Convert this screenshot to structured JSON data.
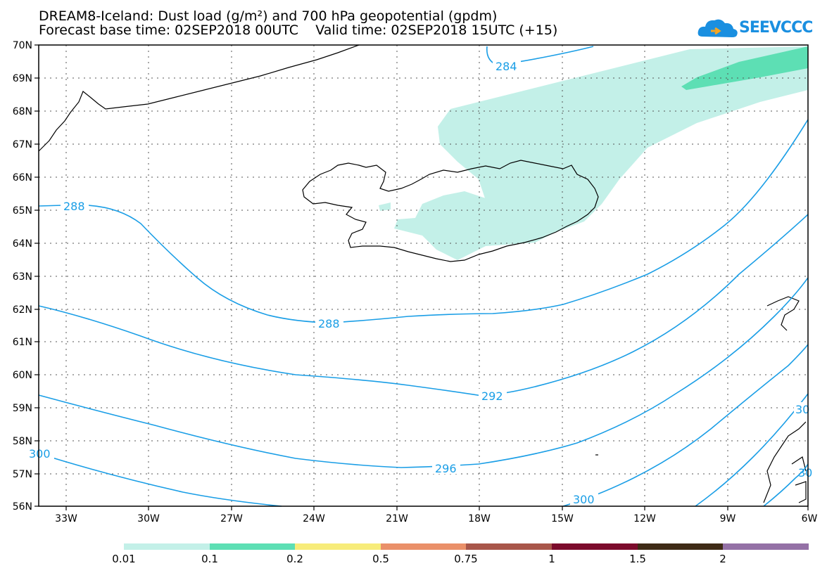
{
  "title_line1": "DREAM8-Iceland: Dust load (g/m²) and 700 hPa geopotential (gpdm)",
  "title_line2": "Forecast base time: 02SEP2018 00UTC    Valid time: 02SEP2018 15UTC (+15)",
  "logo_text": "SEEVCCC",
  "map": {
    "lat_labels": [
      "70N",
      "69N",
      "68N",
      "67N",
      "66N",
      "65N",
      "64N",
      "63N",
      "62N",
      "61N",
      "60N",
      "59N",
      "58N",
      "57N",
      "56N"
    ],
    "lon_labels": [
      "33W",
      "30W",
      "27W",
      "24W",
      "21W",
      "18W",
      "15W",
      "12W",
      "9W",
      "6W"
    ],
    "contour_labels": [
      "284",
      "288",
      "288",
      "292",
      "296",
      "300",
      "300",
      "30",
      "30"
    ],
    "contour_color": "#1a9ee6",
    "dust_light_color": "#c3f0e8",
    "dust_medium_color": "#5ddfb4"
  },
  "colorbar": {
    "colors": [
      "#c3f0e8",
      "#5ddfb4",
      "#f7ec7a",
      "#ea9069",
      "#a8564a",
      "#7c0b2c",
      "#3f2b16",
      "#9471a6"
    ],
    "labels": [
      "0.01",
      "0.1",
      "0.2",
      "0.5",
      "0.75",
      "1",
      "1.5",
      "2"
    ]
  }
}
